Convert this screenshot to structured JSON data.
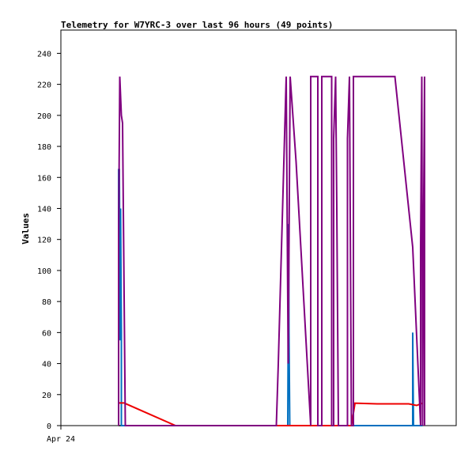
{
  "chart_data": {
    "type": "line",
    "title": "Telemetry for W7YRC-3 over last 96 hours (49 points)",
    "xlabel": "",
    "ylabel": "Values",
    "x_tick_labels": [
      "Apr 24"
    ],
    "xlim": [
      0,
      100
    ],
    "ylim": [
      0,
      255
    ],
    "y_ticks": [
      0,
      20,
      40,
      60,
      80,
      100,
      120,
      140,
      160,
      180,
      200,
      220,
      240
    ],
    "grid": false,
    "legend": "none",
    "series": [
      {
        "color": "#000000",
        "points": [
          [
            14.6,
            0
          ],
          [
            91.5,
            0
          ]
        ]
      },
      {
        "color": "#0070c0",
        "points": [
          [
            14.6,
            0
          ],
          [
            14.6,
            165
          ],
          [
            14.8,
            165
          ],
          [
            14.8,
            160
          ],
          [
            14.9,
            110
          ],
          [
            15.0,
            60
          ],
          [
            15.0,
            55
          ],
          [
            15.1,
            140
          ],
          [
            15.3,
            60
          ],
          [
            15.3,
            0
          ],
          [
            29.0,
            0
          ],
          [
            57.4,
            0
          ],
          [
            57.5,
            60
          ],
          [
            57.6,
            130
          ],
          [
            57.7,
            60
          ],
          [
            57.9,
            0
          ],
          [
            89.0,
            0
          ],
          [
            89.0,
            60
          ],
          [
            89.2,
            0
          ],
          [
            91.5,
            0
          ]
        ]
      },
      {
        "color": "#ee0000",
        "points": [
          [
            14.6,
            14.6
          ],
          [
            16.0,
            14.6
          ],
          [
            29.0,
            0
          ],
          [
            73.5,
            0
          ],
          [
            74.4,
            14.5
          ],
          [
            80.0,
            14.0
          ],
          [
            88.0,
            14.0
          ],
          [
            90.0,
            13.0
          ],
          [
            91.5,
            14.5
          ]
        ]
      },
      {
        "color": "#800080",
        "points": [
          [
            14.6,
            0
          ],
          [
            14.6,
            120
          ],
          [
            14.9,
            225
          ],
          [
            15.3,
            200
          ],
          [
            15.6,
            195
          ],
          [
            16.3,
            0
          ],
          [
            54.5,
            0
          ],
          [
            55.0,
            40
          ],
          [
            57.0,
            225
          ],
          [
            57.5,
            40
          ],
          [
            58.0,
            225
          ],
          [
            59.5,
            170
          ],
          [
            63.2,
            0
          ],
          [
            63.2,
            225
          ],
          [
            65.0,
            225
          ],
          [
            65.0,
            0
          ],
          [
            66.0,
            0
          ],
          [
            66.0,
            225
          ],
          [
            68.5,
            225
          ],
          [
            68.5,
            0
          ],
          [
            69.0,
            0
          ],
          [
            69.0,
            185
          ],
          [
            69.5,
            225
          ],
          [
            69.8,
            140
          ],
          [
            70.2,
            0
          ],
          [
            72.5,
            0
          ],
          [
            72.5,
            185
          ],
          [
            73.0,
            225
          ],
          [
            73.5,
            0
          ],
          [
            74.0,
            0
          ],
          [
            74.0,
            225
          ],
          [
            77.5,
            225
          ],
          [
            77.5,
            225
          ],
          [
            83.0,
            225
          ],
          [
            83.0,
            225
          ],
          [
            84.0,
            225
          ],
          [
            84.5,
            225
          ],
          [
            89.0,
            115
          ],
          [
            91.0,
            0
          ],
          [
            91.0,
            115
          ],
          [
            91.3,
            225
          ],
          [
            91.5,
            0
          ],
          [
            91.7,
            115
          ],
          [
            92.0,
            225
          ],
          [
            92.0,
            0
          ]
        ]
      }
    ]
  }
}
